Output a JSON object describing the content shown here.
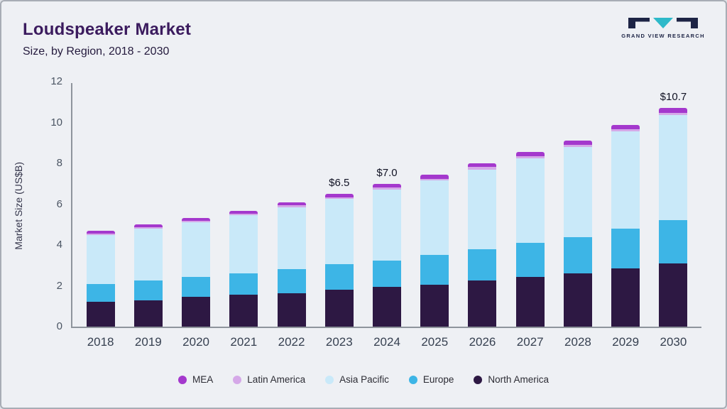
{
  "header": {
    "title": "Loudspeaker Market",
    "subtitle": "Size, by Region, 2018 - 2030",
    "logo_text": "GRAND VIEW RESEARCH"
  },
  "colors": {
    "logo_dark": "#1d2445",
    "logo_teal": "#2eb9c9",
    "title": "#3b1b5e",
    "axis": "#8e949c"
  },
  "chart_data": {
    "type": "bar",
    "stacked": true,
    "title": "Loudspeaker Market Size, by Region, 2018 - 2030",
    "ylabel": "Market Size (US$B)",
    "xlabel": "",
    "ylim": [
      0,
      12
    ],
    "yticks": [
      0,
      2,
      4,
      6,
      8,
      10,
      12
    ],
    "grid": false,
    "legend_position": "bottom",
    "categories": [
      "2018",
      "2019",
      "2020",
      "2021",
      "2022",
      "2023",
      "2024",
      "2025",
      "2026",
      "2027",
      "2028",
      "2029",
      "2030"
    ],
    "series": [
      {
        "name": "North America",
        "color": "#2d1843",
        "values": [
          1.2,
          1.3,
          1.45,
          1.55,
          1.65,
          1.8,
          1.95,
          2.05,
          2.25,
          2.45,
          2.6,
          2.85,
          3.1
        ]
      },
      {
        "name": "Europe",
        "color": "#3db5e6",
        "values": [
          0.9,
          0.95,
          1.0,
          1.05,
          1.15,
          1.25,
          1.3,
          1.45,
          1.55,
          1.65,
          1.8,
          1.95,
          2.1
        ]
      },
      {
        "name": "Asia Pacific",
        "color": "#c9e9f9",
        "values": [
          2.4,
          2.55,
          2.65,
          2.85,
          3.05,
          3.2,
          3.48,
          3.65,
          3.9,
          4.15,
          4.4,
          4.75,
          5.15
        ]
      },
      {
        "name": "Latin America",
        "color": "#d5a8e8",
        "values": [
          0.07,
          0.07,
          0.08,
          0.08,
          0.09,
          0.09,
          0.1,
          0.1,
          0.11,
          0.11,
          0.12,
          0.13,
          0.13
        ]
      },
      {
        "name": "MEA",
        "color": "#a438cd",
        "values": [
          0.13,
          0.13,
          0.14,
          0.15,
          0.16,
          0.16,
          0.17,
          0.18,
          0.19,
          0.19,
          0.2,
          0.21,
          0.22
        ]
      }
    ],
    "totals": [
      4.7,
      5.0,
      5.3,
      5.7,
      6.1,
      6.5,
      7.0,
      7.4,
      8.0,
      8.6,
      9.1,
      9.9,
      10.7
    ],
    "annotations": [
      {
        "category": "2023",
        "text": "$6.5"
      },
      {
        "category": "2024",
        "text": "$7.0"
      },
      {
        "category": "2030",
        "text": "$10.7"
      }
    ],
    "legend": [
      "MEA",
      "Latin America",
      "Asia Pacific",
      "Europe",
      "North America"
    ]
  }
}
